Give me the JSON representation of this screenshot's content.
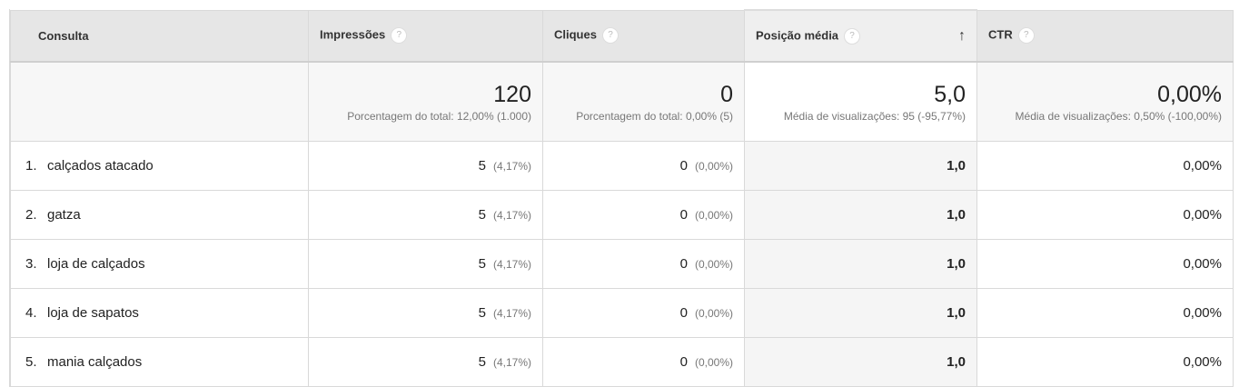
{
  "columns": [
    {
      "label": "Consulta",
      "help": false
    },
    {
      "label": "Impressões",
      "help": true
    },
    {
      "label": "Cliques",
      "help": true
    },
    {
      "label": "Posição média",
      "help": true,
      "sorted": "ascending"
    },
    {
      "label": "CTR",
      "help": true
    }
  ],
  "help_icon": "?",
  "sort_icon": "↑",
  "summary": [
    {
      "value": "120",
      "sub": "Porcentagem do total: 12,00% (1.000)"
    },
    {
      "value": "0",
      "sub": "Porcentagem do total: 0,00% (5)"
    },
    {
      "value": "5,0",
      "sub": "Média de visualizações: 95 (-95,77%)"
    },
    {
      "value": "0,00%",
      "sub": "Média de visualizações: 0,50% (-100,00%)"
    }
  ],
  "rows": [
    {
      "index": "1.",
      "query": "calçados atacado",
      "impressions": "5",
      "impressions_pct": "(4,17%)",
      "clicks": "0",
      "clicks_pct": "(0,00%)",
      "position": "1,0",
      "ctr": "0,00%"
    },
    {
      "index": "2.",
      "query": "gatza",
      "impressions": "5",
      "impressions_pct": "(4,17%)",
      "clicks": "0",
      "clicks_pct": "(0,00%)",
      "position": "1,0",
      "ctr": "0,00%"
    },
    {
      "index": "3.",
      "query": "loja de calçados",
      "impressions": "5",
      "impressions_pct": "(4,17%)",
      "clicks": "0",
      "clicks_pct": "(0,00%)",
      "position": "1,0",
      "ctr": "0,00%"
    },
    {
      "index": "4.",
      "query": "loja de sapatos",
      "impressions": "5",
      "impressions_pct": "(4,17%)",
      "clicks": "0",
      "clicks_pct": "(0,00%)",
      "position": "1,0",
      "ctr": "0,00%"
    },
    {
      "index": "5.",
      "query": "mania calçados",
      "impressions": "5",
      "impressions_pct": "(4,17%)",
      "clicks": "0",
      "clicks_pct": "(0,00%)",
      "position": "1,0",
      "ctr": "0,00%"
    }
  ]
}
